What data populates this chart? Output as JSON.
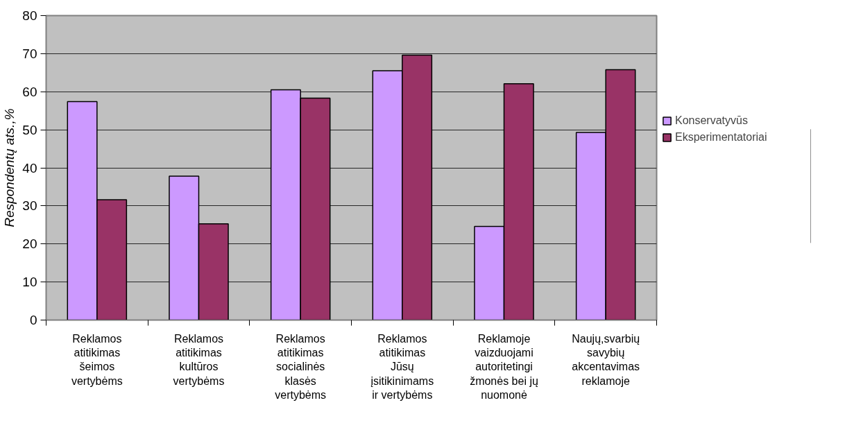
{
  "chart_data": {
    "type": "bar",
    "ylabel": "Respondentų ats.,%",
    "categories": [
      "Reklamos atitikimas šeimos vertybėms",
      "Reklamos atitikimas kultūros vertybėms",
      "Reklamos atitikimas socialinės klasės vertybėms",
      "Reklamos atitikimas Jūsų įsitikinimams ir vertybėms",
      "Reklamoje vaizduojami autoritetingi žmonės bei jų nuomonė",
      "Naujų,svarbių savybių akcentavimas reklamoje"
    ],
    "series": [
      {
        "name": "Konservatyvūs",
        "color": "#cc99ff",
        "values": [
          57.4,
          37.8,
          60.5,
          65.5,
          24.6,
          49.3
        ]
      },
      {
        "name": "Eksperimentatoriai",
        "color": "#993366",
        "values": [
          31.6,
          25.3,
          58.3,
          69.6,
          62.1,
          65.8
        ]
      }
    ],
    "ylim": [
      0,
      80
    ],
    "yticks": [
      0,
      10,
      20,
      30,
      40,
      50,
      60,
      70,
      80
    ],
    "grid": "y",
    "legend": "right"
  }
}
